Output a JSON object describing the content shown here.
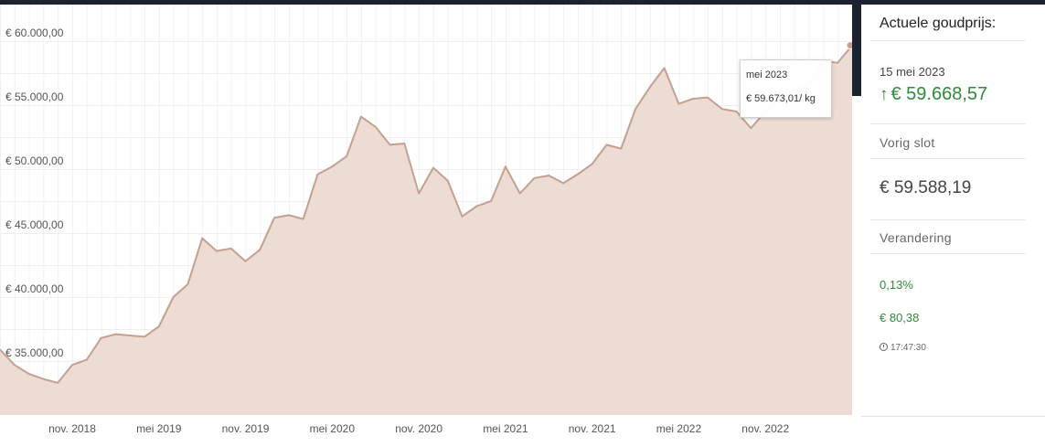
{
  "chart_data": {
    "type": "area",
    "title": "",
    "xlabel": "",
    "ylabel": "",
    "ylim": [
      31000,
      61000
    ],
    "y_ticks": [
      60000,
      55000,
      50000,
      45000,
      40000,
      35000
    ],
    "y_tick_labels": [
      "€ 60.000,00",
      "€ 55.000,00",
      "€ 50.000,00",
      "€ 45.000,00",
      "€ 40.000,00",
      "€ 35.000,00"
    ],
    "x_start": "2018-06",
    "x_end": "2023-05",
    "x_ticks": [
      "2018-11",
      "2019-05",
      "2019-11",
      "2020-05",
      "2020-11",
      "2021-05",
      "2021-11",
      "2022-05",
      "2022-11"
    ],
    "x_tick_labels": [
      "nov. 2018",
      "mei 2019",
      "nov. 2019",
      "mei 2020",
      "nov. 2020",
      "mei 2021",
      "nov. 2021",
      "mei 2022",
      "nov. 2022"
    ],
    "grid": true,
    "colors": {
      "line": "#c4a090",
      "fill": "#ecdcd4"
    },
    "series": [
      {
        "points": [
          [
            "2018-06",
            35900
          ],
          [
            "2018-07",
            34700
          ],
          [
            "2018-08",
            34000
          ],
          [
            "2018-09",
            33600
          ],
          [
            "2018-10",
            33300
          ],
          [
            "2018-11",
            34700
          ],
          [
            "2018-12",
            35100
          ],
          [
            "2019-01",
            36800
          ],
          [
            "2019-02",
            37100
          ],
          [
            "2019-03",
            37000
          ],
          [
            "2019-04",
            36900
          ],
          [
            "2019-05",
            37700
          ],
          [
            "2019-06",
            40000
          ],
          [
            "2019-07",
            41000
          ],
          [
            "2019-08",
            44600
          ],
          [
            "2019-09",
            43600
          ],
          [
            "2019-10",
            43800
          ],
          [
            "2019-11",
            42800
          ],
          [
            "2019-12",
            43700
          ],
          [
            "2020-01",
            46200
          ],
          [
            "2020-02",
            46400
          ],
          [
            "2020-03",
            46100
          ],
          [
            "2020-04",
            49600
          ],
          [
            "2020-05",
            50200
          ],
          [
            "2020-06",
            51000
          ],
          [
            "2020-07",
            54100
          ],
          [
            "2020-08",
            53300
          ],
          [
            "2020-09",
            51900
          ],
          [
            "2020-10",
            52000
          ],
          [
            "2020-11",
            48100
          ],
          [
            "2020-12",
            50100
          ],
          [
            "2021-01",
            49100
          ],
          [
            "2021-02",
            46300
          ],
          [
            "2021-03",
            47100
          ],
          [
            "2021-04",
            47500
          ],
          [
            "2021-05",
            50200
          ],
          [
            "2021-06",
            48100
          ],
          [
            "2021-07",
            49300
          ],
          [
            "2021-08",
            49500
          ],
          [
            "2021-09",
            48900
          ],
          [
            "2021-10",
            49600
          ],
          [
            "2021-11",
            50400
          ],
          [
            "2021-12",
            51900
          ],
          [
            "2022-01",
            51600
          ],
          [
            "2022-02",
            54700
          ],
          [
            "2022-03",
            56400
          ],
          [
            "2022-04",
            57900
          ],
          [
            "2022-05",
            55100
          ],
          [
            "2022-06",
            55500
          ],
          [
            "2022-07",
            55600
          ],
          [
            "2022-08",
            54700
          ],
          [
            "2022-09",
            54500
          ],
          [
            "2022-10",
            53200
          ],
          [
            "2022-11",
            54500
          ],
          [
            "2022-12",
            55500
          ],
          [
            "2023-01",
            56200
          ],
          [
            "2023-02",
            56600
          ],
          [
            "2023-03",
            58500
          ],
          [
            "2023-04",
            58300
          ],
          [
            "2023-05",
            59673.01
          ]
        ]
      }
    ],
    "tooltip": {
      "date": "mei 2023",
      "value": "€ 59.673,01/ kg"
    }
  },
  "panel": {
    "title": "Actuele goudprijs:",
    "date": "15 mei 2023",
    "price_arrow": "↑",
    "price": "€ 59.668,57",
    "previous_label": "Vorig slot",
    "previous_value": "€ 59.588,19",
    "change_label": "Verandering",
    "change_percent": "0,13%",
    "change_value": "€ 80,38",
    "time": "17:47:30",
    "colors": {
      "up": "#2e8b3a"
    }
  }
}
